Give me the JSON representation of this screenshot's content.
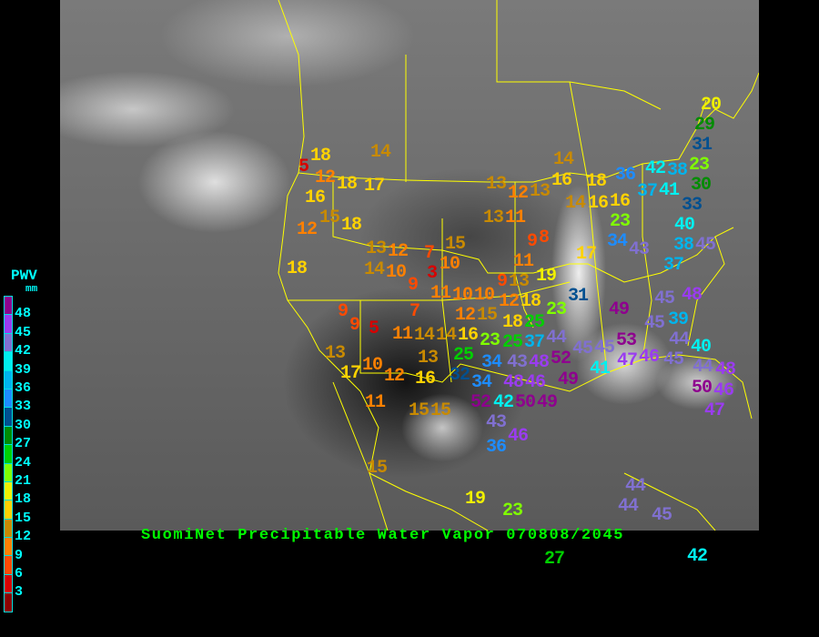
{
  "title": "SuomiNet Precipitable Water Vapor 070808/2045",
  "legend": {
    "title": "PWV",
    "unit": "mm",
    "ticks": [
      "48",
      "45",
      "42",
      "39",
      "36",
      "33",
      "30",
      "27",
      "24",
      "21",
      "18",
      "15",
      "12",
      "9",
      "6",
      "3"
    ],
    "colors": [
      "#8e008e",
      "#9a3cf0",
      "#8070d0",
      "#00f0f0",
      "#00b4ec",
      "#1e8cff",
      "#005090",
      "#008c00",
      "#00d000",
      "#80ff00",
      "#f0f000",
      "#ffd200",
      "#c88a00",
      "#ff8000",
      "#ff4a00",
      "#d80000",
      "#8c0000"
    ]
  },
  "stations": [
    5,
    18,
    12,
    18,
    17,
    16,
    14,
    15,
    18,
    12,
    18,
    13,
    12,
    14,
    10,
    9,
    7,
    10,
    3,
    15,
    11,
    10,
    10,
    9,
    13,
    11,
    19,
    12,
    12,
    15,
    18,
    14,
    16,
    23,
    25,
    18,
    25,
    37,
    44,
    23,
    31,
    25,
    43,
    48,
    52,
    45,
    34,
    32,
    34,
    48,
    46,
    49,
    49,
    41,
    52,
    42,
    50,
    43,
    46,
    36,
    19,
    15,
    9,
    9,
    5,
    7,
    11,
    14,
    13,
    17,
    10,
    12,
    16,
    13,
    11,
    15,
    15,
    20,
    29,
    31,
    23,
    36,
    42,
    38,
    41,
    37,
    18,
    16,
    14,
    30,
    33,
    40,
    23,
    34,
    43,
    38,
    45,
    37,
    17,
    14,
    16,
    13,
    12,
    13,
    16,
    13,
    11,
    9,
    8,
    48,
    49,
    45,
    45,
    39,
    53,
    44,
    40,
    47,
    46,
    45,
    44,
    48,
    50,
    46,
    47,
    45,
    44,
    44,
    45,
    42,
    23,
    27
  ]
}
